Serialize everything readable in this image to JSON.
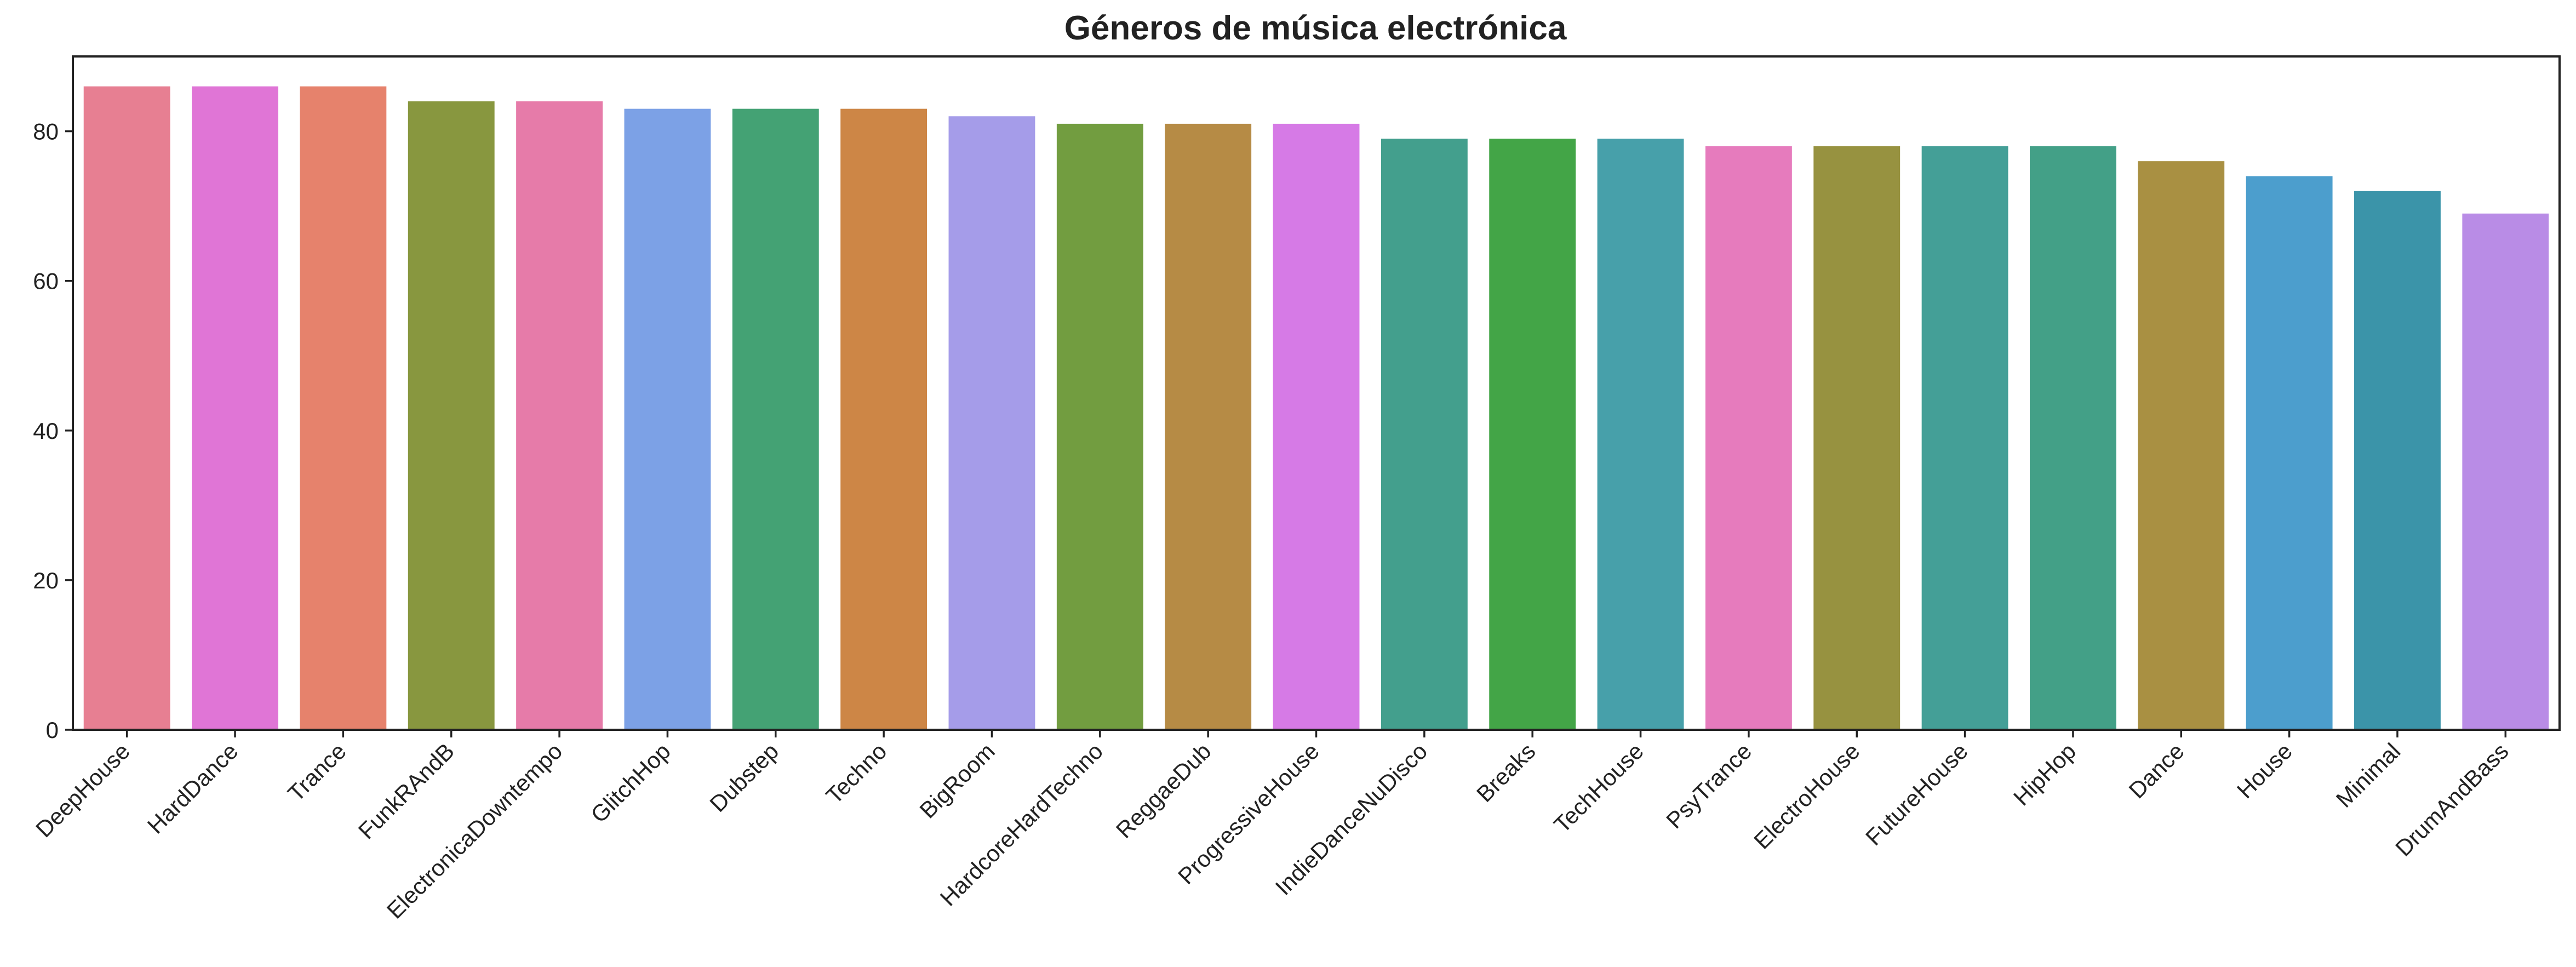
{
  "chart_data": {
    "type": "bar",
    "title": "Géneros de música electrónica",
    "xlabel": "",
    "ylabel": "",
    "categories": [
      "DeepHouse",
      "HardDance",
      "Trance",
      "FunkRAndB",
      "ElectronicaDowntempo",
      "GlitchHop",
      "Dubstep",
      "Techno",
      "BigRoom",
      "HardcoreHardTechno",
      "ReggaeDub",
      "ProgressiveHouse",
      "IndieDanceNuDisco",
      "Breaks",
      "TechHouse",
      "PsyTrance",
      "ElectroHouse",
      "FutureHouse",
      "HipHop",
      "Dance",
      "House",
      "Minimal",
      "DrumAndBass"
    ],
    "values": [
      86,
      86,
      86,
      84,
      84,
      83,
      83,
      83,
      82,
      81,
      81,
      81,
      79,
      79,
      79,
      78,
      78,
      78,
      78,
      76,
      74,
      72,
      69
    ],
    "colors": [
      "#e77f92",
      "#e075d6",
      "#e6826c",
      "#88973f",
      "#e67ba9",
      "#7ca1e6",
      "#44a274",
      "#cd8646",
      "#a59ce9",
      "#729d40",
      "#b68b45",
      "#d67ae6",
      "#439f8d",
      "#43a547",
      "#47a0aa",
      "#e67bbd",
      "#979240",
      "#449f97",
      "#43a087",
      "#a99042",
      "#4c9ecd",
      "#3b94a9",
      "#b98ce6"
    ],
    "ylim": [
      0,
      90
    ],
    "yticks": [
      0,
      20,
      40,
      60,
      80
    ],
    "xtick_rotation": 45,
    "grid": false,
    "legend": "none"
  }
}
